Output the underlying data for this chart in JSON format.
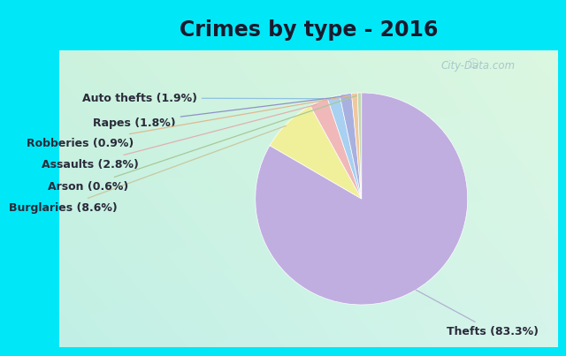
{
  "title": "Crimes by type - 2016",
  "slices": [
    {
      "label": "Thefts (83.3%)",
      "value": 83.3,
      "color": "#c0aee0"
    },
    {
      "label": "Burglaries (8.6%)",
      "value": 8.6,
      "color": "#f0f09a"
    },
    {
      "label": "Assaults (2.8%)",
      "value": 2.8,
      "color": "#f0b8b8"
    },
    {
      "label": "Auto thefts (1.9%)",
      "value": 1.9,
      "color": "#a8d0f0"
    },
    {
      "label": "Rapes (1.8%)",
      "value": 1.8,
      "color": "#a8b0e0"
    },
    {
      "label": "Robberies (0.9%)",
      "value": 0.9,
      "color": "#f0c8a0"
    },
    {
      "label": "Arson (0.6%)",
      "value": 0.6,
      "color": "#c0d8b0"
    }
  ],
  "bg_top": "#00e8f8",
  "bg_grad_topleft": [
    0.78,
    0.94,
    0.9
  ],
  "bg_grad_botright": [
    0.82,
    0.96,
    0.84
  ],
  "watermark": "City-Data.com",
  "title_fontsize": 17,
  "label_fontsize": 9,
  "text_color": "#2a2a3a",
  "line_colors": [
    "#b0b0d0",
    "#c8c8a0",
    "#e0b0b0",
    "#90c0e0",
    "#9090c8",
    "#e0b890",
    "#a8c898"
  ]
}
